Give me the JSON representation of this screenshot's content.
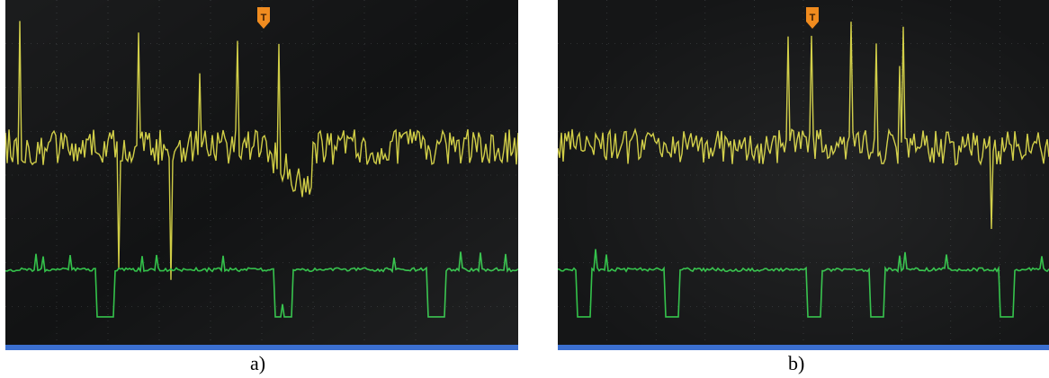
{
  "figure": {
    "panels": [
      {
        "caption": "a)",
        "trigger_marker": "T",
        "channel_colors": {
          "ch1": "#e6e24a",
          "ch2": "#33c24a"
        },
        "screen_bg": "#121314",
        "grid_color": "#5a5f63"
      },
      {
        "caption": "b)",
        "trigger_marker": "T",
        "channel_colors": {
          "ch1": "#e6e24a",
          "ch2": "#33c24a"
        },
        "screen_bg": "#151617",
        "grid_color": "#5a5f63"
      }
    ]
  }
}
